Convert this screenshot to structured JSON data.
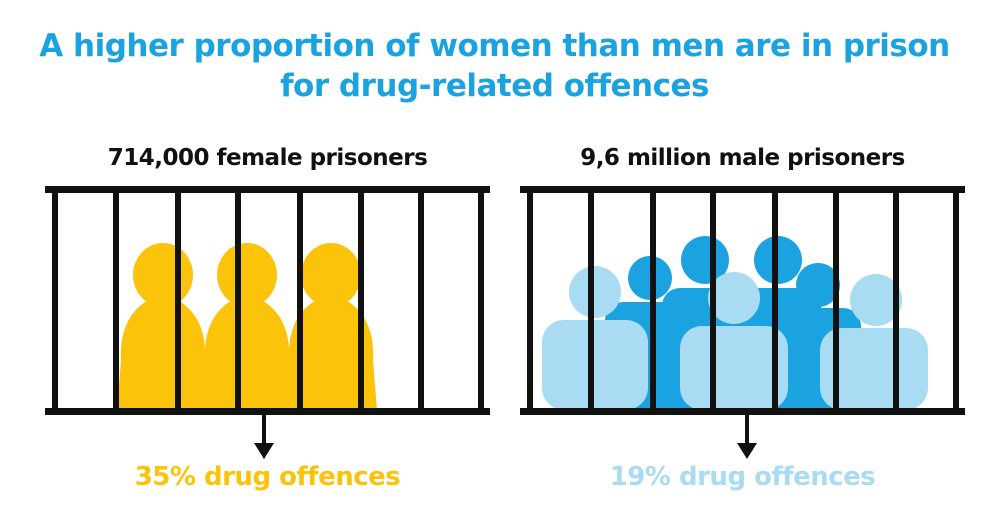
{
  "title": {
    "line1": "A higher proportion of women than men are in prison",
    "line2": "for drug-related offences"
  },
  "female": {
    "label": "714,000 female prisoners",
    "stat": "35% drug offences",
    "drug_offence_share": 35
  },
  "male": {
    "label": "9,6 million male prisoners",
    "stat": "19% drug offences",
    "drug_offence_share": 19
  },
  "colors": {
    "title": "#1aa3e0",
    "female": "#fcc30b",
    "male_dark": "#1aa3e0",
    "male_light": "#a9dcf2",
    "bars": "#111111"
  },
  "icons": [
    "female-prisoner-icon",
    "male-prisoner-icon",
    "down-arrow-icon"
  ]
}
